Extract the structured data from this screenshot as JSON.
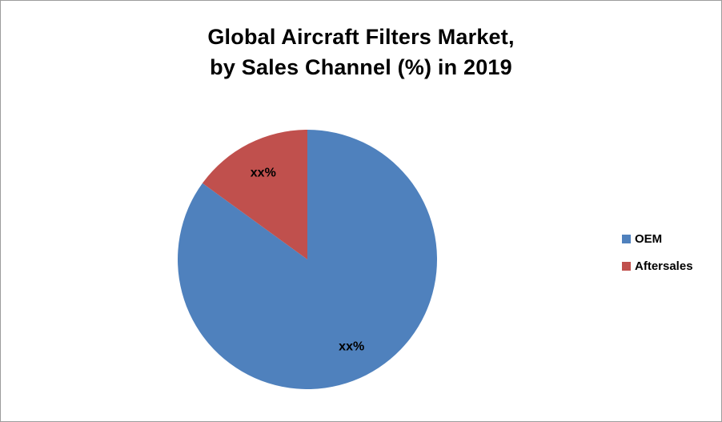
{
  "chart_data": {
    "type": "pie",
    "title_line1": "Global Aircraft Filters Market,",
    "title_line2": "by Sales Channel (%) in 2019",
    "start_angle_deg": 0,
    "direction": "clockwise",
    "legend_position": "right",
    "slices": [
      {
        "label": "OEM",
        "value": 85,
        "data_label": "xx%",
        "color": "#4F81BD"
      },
      {
        "label": "Aftersales",
        "value": 15,
        "data_label": "xx%",
        "color": "#C0504D"
      }
    ]
  }
}
